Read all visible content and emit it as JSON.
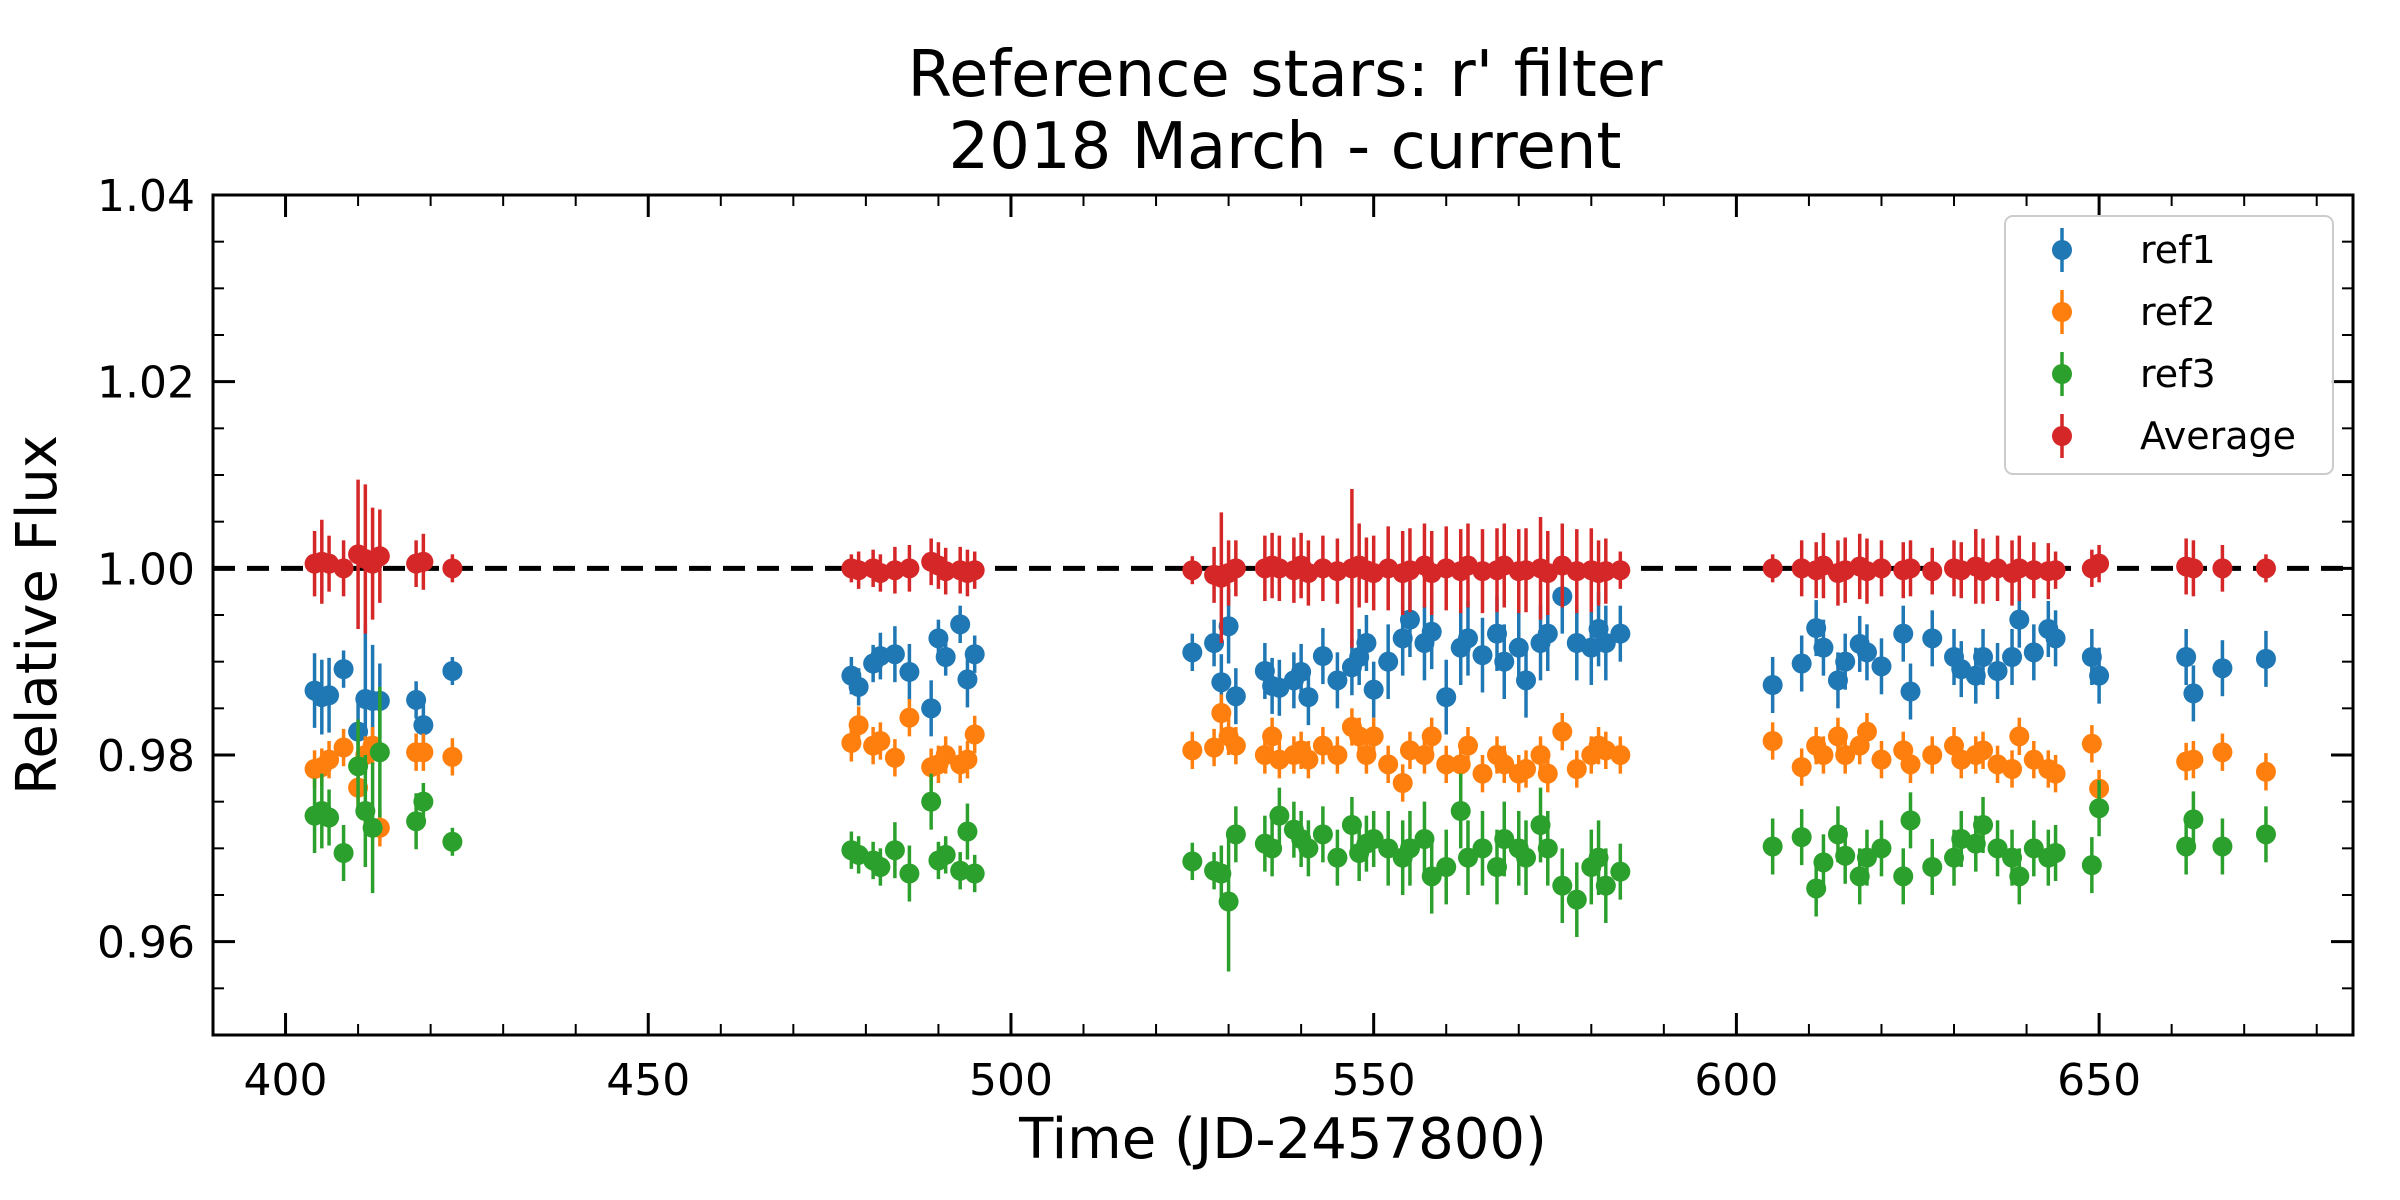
{
  "chart_data": {
    "type": "scatter",
    "title": "Reference stars: r' filter",
    "subtitle": "2018 March - current",
    "xlabel": "Time (JD-2457800)",
    "ylabel": "Relative Flux",
    "xlim": [
      390,
      685
    ],
    "ylim": [
      0.95,
      1.04
    ],
    "xticks": [
      400,
      450,
      500,
      550,
      600,
      650
    ],
    "yticks": [
      0.96,
      0.98,
      1.0,
      1.02,
      1.04
    ],
    "xtick_labels": [
      "400",
      "450",
      "500",
      "550",
      "600",
      "650"
    ],
    "ytick_labels": [
      "0.96",
      "0.98",
      "1.00",
      "1.02",
      "1.04"
    ],
    "reference_line": 1.0,
    "legend_position": "top-right",
    "x": [
      404,
      405,
      406,
      408,
      410,
      411,
      412,
      413,
      418,
      419,
      423,
      478,
      479,
      481,
      482,
      484,
      486,
      489,
      490,
      491,
      493,
      494,
      495,
      525,
      528,
      529,
      530,
      531,
      535,
      536,
      537,
      539,
      540,
      541,
      543,
      545,
      547,
      548,
      549,
      550,
      552,
      554,
      555,
      557,
      558,
      560,
      562,
      563,
      565,
      567,
      568,
      570,
      571,
      573,
      574,
      576,
      578,
      580,
      581,
      582,
      584,
      605,
      609,
      611,
      612,
      614,
      615,
      617,
      618,
      620,
      623,
      624,
      627,
      630,
      631,
      633,
      634,
      636,
      638,
      639,
      641,
      643,
      644,
      649,
      650,
      662,
      663,
      667,
      673
    ],
    "series": [
      {
        "name": "ref1",
        "color": "#1f77b4",
        "values": [
          0.9869,
          0.9862,
          0.9864,
          0.9892,
          0.9825,
          0.986,
          0.9858,
          0.9858,
          0.9859,
          0.9832,
          0.989,
          0.9885,
          0.9873,
          0.9898,
          0.9906,
          0.9908,
          0.9889,
          0.985,
          0.9925,
          0.9905,
          0.994,
          0.9881,
          0.9908,
          0.991,
          0.992,
          0.9878,
          0.9938,
          0.9863,
          0.989,
          0.9874,
          0.9872,
          0.988,
          0.9889,
          0.9862,
          0.9906,
          0.988,
          0.9894,
          0.9905,
          0.992,
          0.987,
          0.99,
          0.9925,
          0.9945,
          0.992,
          0.9932,
          0.9862,
          0.9915,
          0.9925,
          0.9907,
          0.993,
          0.99,
          0.9915,
          0.988,
          0.992,
          0.993,
          0.997,
          0.992,
          0.9915,
          0.9935,
          0.992,
          0.993,
          0.9875,
          0.9898,
          0.9936,
          0.9915,
          0.988,
          0.99,
          0.9919,
          0.991,
          0.9895,
          0.993,
          0.9868,
          0.9925,
          0.9905,
          0.9892,
          0.9885,
          0.9905,
          0.989,
          0.9905,
          0.9945,
          0.991,
          0.9935,
          0.9925,
          0.9905,
          0.9885,
          0.9905,
          0.9866,
          0.9893,
          0.9903
        ],
        "errors": [
          0.004,
          0.004,
          0.004,
          0.002,
          0.003,
          0.008,
          0.006,
          0.004,
          0.002,
          0.0025,
          0.0015,
          0.002,
          0.002,
          0.002,
          0.0025,
          0.003,
          0.003,
          0.003,
          0.002,
          0.002,
          0.002,
          0.003,
          0.002,
          0.002,
          0.0025,
          0.003,
          0.004,
          0.003,
          0.003,
          0.003,
          0.003,
          0.003,
          0.003,
          0.003,
          0.003,
          0.003,
          0.003,
          0.003,
          0.003,
          0.003,
          0.004,
          0.004,
          0.004,
          0.004,
          0.004,
          0.004,
          0.004,
          0.004,
          0.004,
          0.004,
          0.004,
          0.004,
          0.004,
          0.004,
          0.004,
          0.004,
          0.004,
          0.004,
          0.004,
          0.004,
          0.003,
          0.003,
          0.003,
          0.003,
          0.003,
          0.003,
          0.003,
          0.003,
          0.003,
          0.003,
          0.003,
          0.003,
          0.003,
          0.003,
          0.003,
          0.003,
          0.003,
          0.003,
          0.003,
          0.003,
          0.003,
          0.003,
          0.003,
          0.003,
          0.003,
          0.003,
          0.003,
          0.003,
          0.003
        ]
      },
      {
        "name": "ref2",
        "color": "#ff7f0e",
        "values": [
          0.9785,
          0.9787,
          0.9795,
          0.9808,
          0.9765,
          0.98,
          0.981,
          0.9722,
          0.9803,
          0.9803,
          0.9798,
          0.9813,
          0.9832,
          0.981,
          0.9815,
          0.9797,
          0.984,
          0.9787,
          0.979,
          0.98,
          0.979,
          0.9795,
          0.9822,
          0.9805,
          0.9808,
          0.9845,
          0.982,
          0.981,
          0.98,
          0.982,
          0.9795,
          0.98,
          0.9805,
          0.9795,
          0.981,
          0.98,
          0.983,
          0.982,
          0.98,
          0.982,
          0.979,
          0.977,
          0.9805,
          0.98,
          0.982,
          0.979,
          0.979,
          0.981,
          0.978,
          0.98,
          0.979,
          0.978,
          0.9785,
          0.98,
          0.978,
          0.9825,
          0.9785,
          0.98,
          0.981,
          0.9805,
          0.98,
          0.9815,
          0.9787,
          0.981,
          0.98,
          0.982,
          0.98,
          0.981,
          0.9825,
          0.9795,
          0.9805,
          0.979,
          0.98,
          0.981,
          0.9795,
          0.98,
          0.9805,
          0.979,
          0.9785,
          0.982,
          0.9795,
          0.9785,
          0.978,
          0.9812,
          0.9764,
          0.9793,
          0.9795,
          0.9803,
          0.9782
        ]
      },
      {
        "name": "ref3",
        "color": "#2ca02c",
        "values": [
          0.9735,
          0.974,
          0.9733,
          0.9695,
          0.9788,
          0.974,
          0.9722,
          0.9803,
          0.9729,
          0.975,
          0.9707,
          0.9698,
          0.9693,
          0.9687,
          0.968,
          0.9698,
          0.9673,
          0.975,
          0.9687,
          0.9693,
          0.9676,
          0.9718,
          0.9673,
          0.9686,
          0.9676,
          0.9673,
          0.9643,
          0.9715,
          0.9705,
          0.97,
          0.9735,
          0.972,
          0.971,
          0.97,
          0.9715,
          0.969,
          0.9725,
          0.9695,
          0.9705,
          0.971,
          0.97,
          0.969,
          0.97,
          0.971,
          0.967,
          0.968,
          0.974,
          0.969,
          0.97,
          0.968,
          0.971,
          0.97,
          0.969,
          0.9725,
          0.97,
          0.966,
          0.9645,
          0.968,
          0.969,
          0.966,
          0.9675,
          0.9702,
          0.9712,
          0.9657,
          0.9685,
          0.9715,
          0.9692,
          0.967,
          0.969,
          0.97,
          0.967,
          0.973,
          0.968,
          0.969,
          0.971,
          0.9705,
          0.9725,
          0.97,
          0.969,
          0.967,
          0.97,
          0.969,
          0.9695,
          0.9682,
          0.9743,
          0.9702,
          0.9731,
          0.9702,
          0.9715
        ],
        "errors": [
          0.004,
          0.004,
          0.003,
          0.003,
          0.005,
          0.006,
          0.007,
          0.007,
          0.003,
          0.002,
          0.0015,
          0.002,
          0.002,
          0.002,
          0.002,
          0.003,
          0.003,
          0.003,
          0.002,
          0.002,
          0.002,
          0.003,
          0.002,
          0.002,
          0.002,
          0.003,
          0.0075,
          0.003,
          0.003,
          0.003,
          0.003,
          0.003,
          0.003,
          0.003,
          0.003,
          0.003,
          0.003,
          0.003,
          0.003,
          0.003,
          0.004,
          0.004,
          0.004,
          0.004,
          0.004,
          0.004,
          0.004,
          0.004,
          0.004,
          0.004,
          0.004,
          0.004,
          0.004,
          0.004,
          0.004,
          0.004,
          0.004,
          0.004,
          0.004,
          0.004,
          0.003,
          0.003,
          0.003,
          0.003,
          0.003,
          0.003,
          0.003,
          0.003,
          0.003,
          0.003,
          0.003,
          0.003,
          0.003,
          0.003,
          0.003,
          0.003,
          0.003,
          0.003,
          0.003,
          0.003,
          0.003,
          0.003,
          0.003,
          0.003,
          0.003,
          0.003,
          0.003,
          0.003,
          0.003
        ]
      },
      {
        "name": "Average",
        "color": "#d62728",
        "values": [
          1.0005,
          1.0007,
          1.0005,
          1.0,
          1.0015,
          1.001,
          1.0005,
          1.0013,
          1.0005,
          1.0007,
          1.0,
          1.0,
          0.9998,
          1.0,
          0.9995,
          0.9998,
          1.0,
          1.0007,
          1.0003,
          0.9997,
          0.9998,
          0.9995,
          0.9998,
          0.9998,
          0.9993,
          0.999,
          0.9995,
          1.0,
          1.0,
          1.0003,
          1.0,
          0.9998,
          1.0003,
          0.9995,
          1.0,
          0.9997,
          1.0,
          1.0003,
          0.9998,
          0.9995,
          1.0,
          0.9995,
          0.9998,
          1.0003,
          0.9995,
          1.0,
          0.9997,
          1.0003,
          0.9997,
          0.9998,
          1.0003,
          0.9997,
          0.9998,
          1.0,
          0.9995,
          1.0003,
          0.9997,
          0.9998,
          0.9995,
          0.9997,
          0.9998,
          1.0,
          1.0,
          0.9998,
          1.0003,
          0.9995,
          0.9998,
          1.0002,
          0.9997,
          1.0,
          0.9998,
          1.0,
          0.9997,
          1.0,
          0.9998,
          1.0002,
          0.9997,
          1.0,
          0.9995,
          1.0,
          0.9998,
          0.9997,
          0.9998,
          1.0,
          1.0005,
          1.0002,
          1.0,
          1.0,
          1.0
        ],
        "errors": [
          0.0035,
          0.0045,
          0.003,
          0.003,
          0.008,
          0.008,
          0.006,
          0.005,
          0.0025,
          0.003,
          0.0015,
          0.0015,
          0.002,
          0.002,
          0.002,
          0.0025,
          0.0025,
          0.0025,
          0.0025,
          0.0025,
          0.0025,
          0.0025,
          0.002,
          0.0015,
          0.003,
          0.007,
          0.0035,
          0.003,
          0.0035,
          0.0035,
          0.0035,
          0.0035,
          0.0035,
          0.0035,
          0.0035,
          0.0035,
          0.0085,
          0.0045,
          0.0035,
          0.004,
          0.0045,
          0.0045,
          0.0045,
          0.0045,
          0.0045,
          0.0045,
          0.0045,
          0.0045,
          0.0045,
          0.0045,
          0.0045,
          0.0045,
          0.0045,
          0.0055,
          0.0045,
          0.0045,
          0.0045,
          0.0045,
          0.0035,
          0.0035,
          0.002,
          0.0015,
          0.003,
          0.003,
          0.0035,
          0.0035,
          0.0035,
          0.0035,
          0.0035,
          0.003,
          0.003,
          0.003,
          0.0025,
          0.003,
          0.003,
          0.004,
          0.0035,
          0.0035,
          0.0035,
          0.0035,
          0.003,
          0.003,
          0.002,
          0.002,
          0.002,
          0.003,
          0.003,
          0.0025,
          0.0015
        ]
      }
    ]
  }
}
